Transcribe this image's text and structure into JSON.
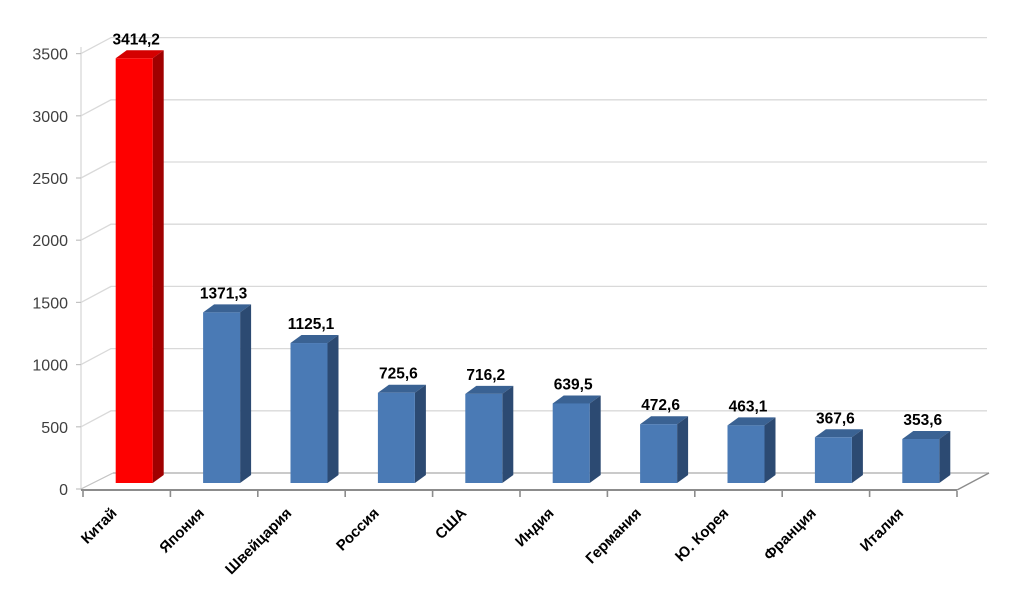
{
  "chart_data": {
    "type": "bar",
    "style": "3d-column",
    "title": "",
    "xlabel": "",
    "ylabel": "",
    "categories": [
      "Китай",
      "Япония",
      "Швейцария",
      "Россия",
      "США",
      "Индия",
      "Германия",
      "Ю. Корея",
      "Франция",
      "Италия"
    ],
    "values": [
      3414.2,
      1371.3,
      1125.1,
      725.6,
      716.2,
      639.5,
      472.6,
      463.1,
      367.6,
      353.6
    ],
    "value_labels": [
      "3414,2",
      "1371,3",
      "1125,1",
      "725,6",
      "716,2",
      "639,5",
      "472,6",
      "463,1",
      "367,6",
      "353,6"
    ],
    "y_ticks": [
      0,
      500,
      1000,
      1500,
      2000,
      2500,
      3000,
      3500
    ],
    "y_tick_labels": [
      "0",
      "500",
      "1000",
      "1500",
      "2000",
      "2500",
      "3000",
      "3500"
    ],
    "ylim": [
      0,
      3500
    ],
    "grid": true,
    "legend_position": "none",
    "highlight_index": 0,
    "colors": {
      "highlight_front": "#fe0000",
      "highlight_top": "#d40000",
      "highlight_side": "#a00000",
      "bar_front": "#4a7ab5",
      "bar_top": "#3a6293",
      "bar_side": "#2c4a72",
      "gridline": "#d9d9d9",
      "wall_edge": "#c2c2c2",
      "floor_back_edge": "#ababab",
      "axis_line": "#8c8c8c",
      "y_axis_line": "#d9d9d9",
      "tick_label": "#3f3f3f",
      "data_label": "#000000",
      "background": "#ffffff"
    }
  }
}
